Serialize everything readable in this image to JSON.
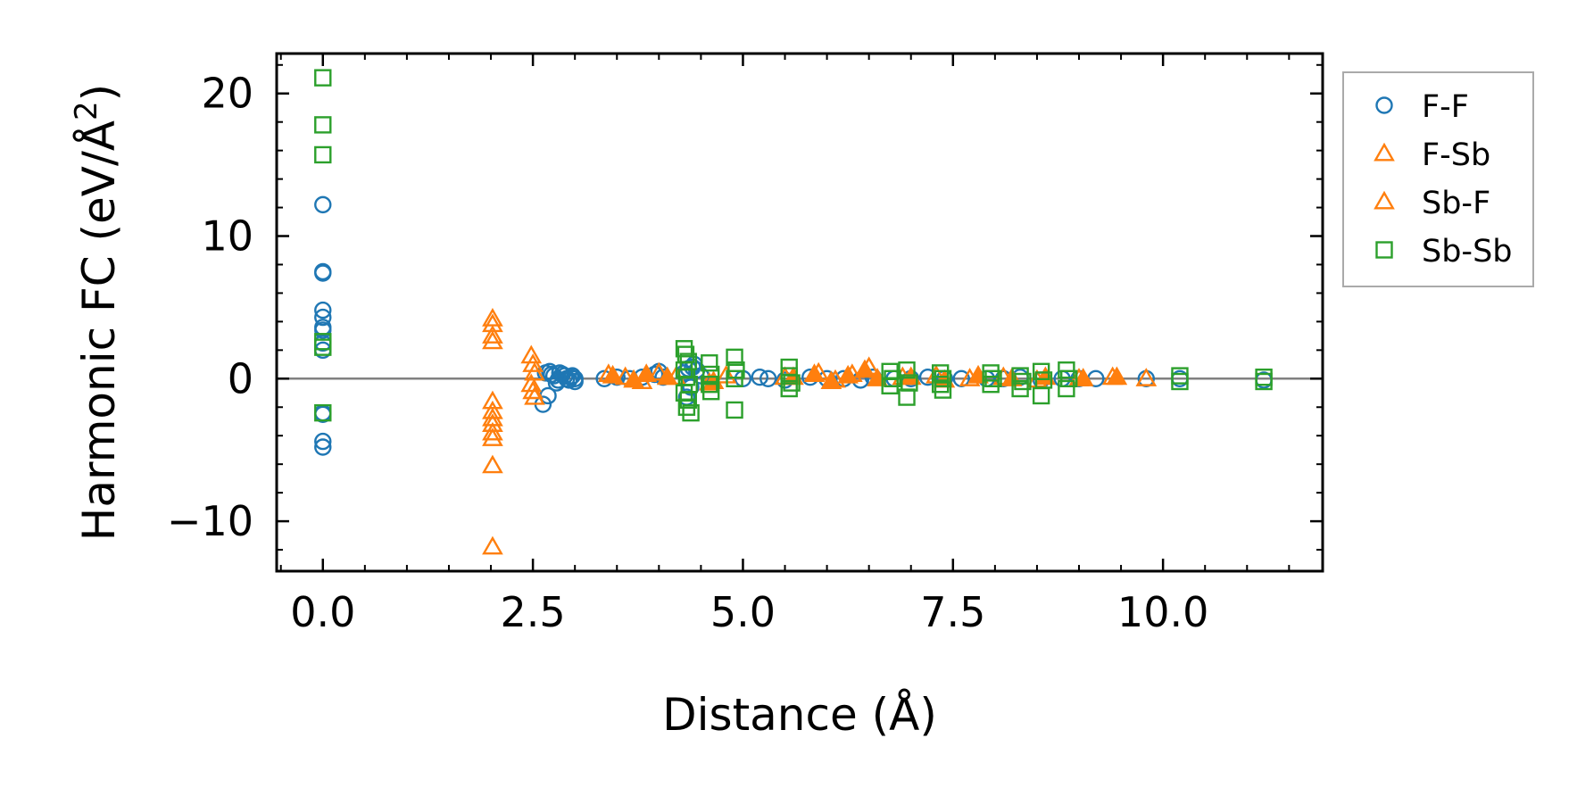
{
  "chart_data": {
    "type": "scatter",
    "title": "",
    "xlabel": "Distance (Å)",
    "ylabel_main": "Harmonic FC (eV/Å",
    "ylabel_sup": "2",
    "ylabel_close": ")",
    "xlim": [
      -0.55,
      11.9
    ],
    "ylim": [
      -13.5,
      22.8
    ],
    "xticks": [
      0.0,
      2.5,
      5.0,
      7.5,
      10.0
    ],
    "xtick_labels": [
      "0.0",
      "2.5",
      "5.0",
      "7.5",
      "10.0"
    ],
    "yticks": [
      -10,
      0,
      10,
      20
    ],
    "ytick_labels": [
      "−10",
      "0",
      "10",
      "20"
    ],
    "zero_line": 0,
    "legend_position": "outside-top-right",
    "series": [
      {
        "name": "F-F",
        "marker": "circle",
        "color": "#1f77b4",
        "x": [
          0.0,
          0.0,
          0.0,
          0.0,
          0.0,
          0.0,
          0.0,
          0.0,
          0.0,
          0.0,
          0.0,
          0.0,
          0.0,
          2.65,
          2.7,
          2.72,
          2.75,
          2.8,
          2.85,
          2.88,
          2.9,
          2.95,
          3.0,
          3.0,
          2.78,
          2.82,
          2.68,
          2.93,
          2.97,
          2.62,
          3.35,
          3.5,
          3.65,
          3.8,
          3.95,
          4.0,
          4.05,
          4.3,
          4.35,
          4.4,
          4.42,
          4.45,
          4.5,
          4.38,
          4.33,
          5.0,
          5.2,
          5.3,
          5.5,
          5.8,
          6.0,
          6.2,
          6.4,
          6.55,
          6.8,
          7.0,
          7.2,
          7.4,
          7.6,
          7.9,
          8.1,
          8.3,
          8.55,
          8.8,
          9.0,
          9.2,
          9.8,
          10.2,
          11.2
        ],
        "y": [
          12.2,
          7.5,
          7.4,
          4.8,
          4.3,
          3.6,
          3.4,
          2.5,
          2.0,
          -2.4,
          -2.5,
          -4.4,
          -4.8,
          0.4,
          0.5,
          0.3,
          0.2,
          -0.1,
          0.3,
          0.2,
          0.0,
          0.1,
          0.0,
          -0.2,
          -0.3,
          0.4,
          -1.2,
          -0.1,
          0.2,
          -1.8,
          0.0,
          0.1,
          0.0,
          0.1,
          0.3,
          0.5,
          0.1,
          0.4,
          0.7,
          0.8,
          1.0,
          0.6,
          0.2,
          -0.6,
          -1.3,
          0.0,
          0.1,
          0.0,
          -0.1,
          0.1,
          0.0,
          0.0,
          -0.1,
          0.1,
          0.0,
          0.0,
          0.1,
          0.0,
          0.0,
          0.0,
          0.0,
          0.1,
          -0.1,
          0.0,
          0.0,
          0.0,
          0.0,
          0.0,
          -0.1
        ]
      },
      {
        "name": "F-Sb",
        "marker": "triangle",
        "color": "#ff7f0e",
        "x": [
          2.02,
          2.02,
          2.02,
          2.02,
          2.02,
          2.02,
          2.02,
          2.02,
          2.02,
          2.02,
          2.02,
          2.02,
          2.48,
          2.5,
          2.52,
          2.48,
          2.5,
          2.52,
          3.4,
          3.6,
          3.8,
          4.0,
          4.2,
          4.6,
          4.8,
          5.5,
          5.9,
          6.1,
          6.3,
          6.5,
          6.9,
          7.3,
          7.7,
          8.1,
          8.5,
          9.0,
          9.4,
          9.8
        ],
        "y": [
          4.2,
          3.8,
          3.0,
          2.6,
          -1.6,
          -2.3,
          -2.8,
          -3.2,
          -3.8,
          -4.2,
          -6.1,
          -11.8,
          1.6,
          1.0,
          0.4,
          -0.4,
          -0.9,
          -1.3,
          0.3,
          0.1,
          -0.2,
          0.4,
          0.1,
          -0.3,
          0.2,
          0.1,
          0.4,
          -0.1,
          0.3,
          0.8,
          0.1,
          0.2,
          0.0,
          0.1,
          -0.1,
          0.0,
          0.1,
          0.0
        ]
      },
      {
        "name": "Sb-F",
        "marker": "triangle-filled",
        "color": "#ff7f0e",
        "x": [
          3.45,
          3.7,
          3.85,
          4.1,
          4.65,
          5.6,
          5.85,
          6.05,
          6.25,
          6.45,
          6.6,
          7.0,
          7.4,
          7.8,
          8.2,
          8.6,
          9.05,
          9.45
        ],
        "y": [
          0.2,
          -0.1,
          0.3,
          0.1,
          -0.2,
          0.1,
          0.3,
          -0.2,
          0.2,
          0.6,
          0.0,
          0.1,
          -0.1,
          0.2,
          0.0,
          0.1,
          0.0,
          0.1
        ]
      },
      {
        "name": "Sb-Sb",
        "marker": "square",
        "color": "#2ca02c",
        "x": [
          0.0,
          0.0,
          0.0,
          0.0,
          0.0,
          0.0,
          4.3,
          4.32,
          4.35,
          4.3,
          4.33,
          4.36,
          4.3,
          4.35,
          4.33,
          4.38,
          4.6,
          4.62,
          4.6,
          4.62,
          4.9,
          4.92,
          4.9,
          4.9,
          5.55,
          5.55,
          5.58,
          5.55,
          6.75,
          6.78,
          6.75,
          6.95,
          6.98,
          6.95,
          7.35,
          7.38,
          7.35,
          7.38,
          7.95,
          7.98,
          7.95,
          8.3,
          8.33,
          8.3,
          8.55,
          8.58,
          8.55,
          8.85,
          8.88,
          8.85,
          10.2,
          10.2,
          11.2,
          11.2
        ],
        "y": [
          21.1,
          17.8,
          15.7,
          2.6,
          2.2,
          -2.4,
          2.1,
          1.7,
          1.2,
          0.6,
          0.1,
          -0.4,
          -1.0,
          -1.5,
          -2.0,
          -2.4,
          1.1,
          0.3,
          -0.4,
          -0.9,
          1.5,
          0.6,
          0.0,
          -2.2,
          0.8,
          0.2,
          -0.3,
          -0.7,
          0.5,
          0.0,
          -0.5,
          0.6,
          -0.3,
          -1.3,
          0.4,
          0.0,
          -0.4,
          -0.8,
          0.4,
          0.0,
          -0.4,
          0.2,
          -0.2,
          -0.7,
          0.5,
          -0.1,
          -1.2,
          0.6,
          0.0,
          -0.7,
          0.2,
          -0.2,
          0.1,
          -0.2
        ]
      }
    ]
  }
}
